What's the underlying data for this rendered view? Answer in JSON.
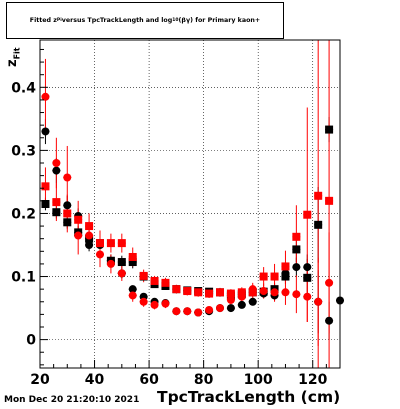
{
  "chart_data": {
    "type": "scatter",
    "title": {
      "pre": "Fitted  z",
      "sub1": "Pi",
      "mid": "  versus TpcTrackLength and log",
      "sub2": "10",
      "post": "(βγ) for Primary kaon+"
    },
    "xlabel": "TpcTrackLength (cm)",
    "ylabel": {
      "main": "z",
      "sub": "Fit"
    },
    "xlim": [
      20,
      130
    ],
    "ylim": [
      -0.045,
      0.475
    ],
    "x_ticks": [
      20,
      40,
      60,
      80,
      100,
      120
    ],
    "y_ticks": [
      0,
      0.1,
      0.2,
      0.3,
      0.4
    ],
    "y_tick_labels": [
      "0",
      "0.1",
      "0.2",
      "0.3",
      "0.4"
    ],
    "grid": true,
    "series": [
      {
        "name": "",
        "color": "#000000",
        "marker": "square",
        "points": [
          {
            "x": 22,
            "y": 0.215,
            "err": 0.01
          },
          {
            "x": 26,
            "y": 0.202,
            "err": 0.01
          },
          {
            "x": 30,
            "y": 0.186,
            "err": 0.01
          },
          {
            "x": 34,
            "y": 0.17,
            "err": 0.01
          },
          {
            "x": 38,
            "y": 0.16,
            "err": 0.01
          },
          {
            "x": 42,
            "y": 0.153,
            "err": 0.01
          },
          {
            "x": 46,
            "y": 0.125,
            "err": 0.01
          },
          {
            "x": 50,
            "y": 0.123,
            "err": 0.01
          },
          {
            "x": 54,
            "y": 0.123,
            "err": 0.01
          },
          {
            "x": 58,
            "y": 0.1,
            "err": 0.006
          },
          {
            "x": 62,
            "y": 0.088,
            "err": 0.006
          },
          {
            "x": 66,
            "y": 0.085,
            "err": 0.006
          },
          {
            "x": 70,
            "y": 0.08,
            "err": 0.005
          },
          {
            "x": 74,
            "y": 0.078,
            "err": 0.005
          },
          {
            "x": 78,
            "y": 0.077,
            "err": 0.005
          },
          {
            "x": 82,
            "y": 0.076,
            "err": 0.005
          },
          {
            "x": 86,
            "y": 0.075,
            "err": 0.005
          },
          {
            "x": 90,
            "y": 0.07,
            "err": 0.005
          },
          {
            "x": 94,
            "y": 0.072,
            "err": 0.005
          },
          {
            "x": 98,
            "y": 0.075,
            "err": 0.006
          },
          {
            "x": 102,
            "y": 0.076,
            "err": 0.008
          },
          {
            "x": 106,
            "y": 0.08,
            "err": 0.01
          },
          {
            "x": 110,
            "y": 0.1,
            "err": 0.012
          },
          {
            "x": 114,
            "y": 0.143,
            "err": 0.02
          },
          {
            "x": 118,
            "y": 0.098,
            "err": 0.03
          },
          {
            "x": 122,
            "y": 0.182,
            "err": 0.06
          },
          {
            "x": 126,
            "y": 0.333,
            "err": 0.02
          }
        ]
      },
      {
        "name": "",
        "color": "#000000",
        "marker": "circle",
        "points": [
          {
            "x": 22,
            "y": 0.33,
            "err": 0.02
          },
          {
            "x": 26,
            "y": 0.268,
            "err": 0.02
          },
          {
            "x": 30,
            "y": 0.213,
            "err": 0.015
          },
          {
            "x": 34,
            "y": 0.196,
            "err": 0.012
          },
          {
            "x": 38,
            "y": 0.15,
            "err": 0.01
          },
          {
            "x": 42,
            "y": 0.15,
            "err": 0.01
          },
          {
            "x": 46,
            "y": 0.125,
            "err": 0.01
          },
          {
            "x": 50,
            "y": 0.105,
            "err": 0.008
          },
          {
            "x": 54,
            "y": 0.08,
            "err": 0.006
          },
          {
            "x": 58,
            "y": 0.068,
            "err": 0.005
          },
          {
            "x": 62,
            "y": 0.06,
            "err": 0.004
          },
          {
            "x": 66,
            "y": 0.058,
            "err": 0.004
          },
          {
            "x": 70,
            "y": 0.045,
            "err": 0.004
          },
          {
            "x": 74,
            "y": 0.045,
            "err": 0.004
          },
          {
            "x": 78,
            "y": 0.043,
            "err": 0.004
          },
          {
            "x": 82,
            "y": 0.045,
            "err": 0.004
          },
          {
            "x": 86,
            "y": 0.05,
            "err": 0.004
          },
          {
            "x": 90,
            "y": 0.05,
            "err": 0.004
          },
          {
            "x": 94,
            "y": 0.055,
            "err": 0.005
          },
          {
            "x": 98,
            "y": 0.06,
            "err": 0.006
          },
          {
            "x": 102,
            "y": 0.073,
            "err": 0.006
          },
          {
            "x": 106,
            "y": 0.07,
            "err": 0.008
          },
          {
            "x": 110,
            "y": 0.105,
            "err": 0.01
          },
          {
            "x": 114,
            "y": 0.115,
            "err": 0.015
          },
          {
            "x": 118,
            "y": 0.115,
            "err": 0.02
          },
          {
            "x": 122,
            "y": 0.06,
            "err": 0.05
          },
          {
            "x": 126,
            "y": 0.03,
            "err": 0.03
          },
          {
            "x": 130,
            "y": 0.062,
            "err": 0.01
          }
        ]
      },
      {
        "name": "",
        "color": "#ff0000",
        "marker": "square",
        "points": [
          {
            "x": 22,
            "y": 0.243,
            "err": 0.03
          },
          {
            "x": 26,
            "y": 0.218,
            "err": 0.03
          },
          {
            "x": 30,
            "y": 0.2,
            "err": 0.03
          },
          {
            "x": 34,
            "y": 0.19,
            "err": 0.03
          },
          {
            "x": 38,
            "y": 0.18,
            "err": 0.02
          },
          {
            "x": 42,
            "y": 0.153,
            "err": 0.02
          },
          {
            "x": 46,
            "y": 0.153,
            "err": 0.015
          },
          {
            "x": 50,
            "y": 0.153,
            "err": 0.015
          },
          {
            "x": 54,
            "y": 0.131,
            "err": 0.015
          },
          {
            "x": 58,
            "y": 0.101,
            "err": 0.01
          },
          {
            "x": 62,
            "y": 0.093,
            "err": 0.008
          },
          {
            "x": 66,
            "y": 0.09,
            "err": 0.008
          },
          {
            "x": 70,
            "y": 0.08,
            "err": 0.007
          },
          {
            "x": 74,
            "y": 0.077,
            "err": 0.007
          },
          {
            "x": 78,
            "y": 0.075,
            "err": 0.007
          },
          {
            "x": 82,
            "y": 0.073,
            "err": 0.007
          },
          {
            "x": 86,
            "y": 0.075,
            "err": 0.007
          },
          {
            "x": 90,
            "y": 0.073,
            "err": 0.007
          },
          {
            "x": 94,
            "y": 0.075,
            "err": 0.008
          },
          {
            "x": 98,
            "y": 0.075,
            "err": 0.01
          },
          {
            "x": 102,
            "y": 0.1,
            "err": 0.015
          },
          {
            "x": 106,
            "y": 0.1,
            "err": 0.02
          },
          {
            "x": 110,
            "y": 0.116,
            "err": 0.025
          },
          {
            "x": 114,
            "y": 0.163,
            "err": 0.05
          },
          {
            "x": 118,
            "y": 0.198,
            "err": 0.17
          },
          {
            "x": 122,
            "y": 0.228,
            "err": 0.3
          },
          {
            "x": 126,
            "y": 0.22,
            "err": 0.3
          }
        ]
      },
      {
        "name": "",
        "color": "#ff0000",
        "marker": "circle",
        "points": [
          {
            "x": 22,
            "y": 0.385,
            "err": 0.06
          },
          {
            "x": 26,
            "y": 0.28,
            "err": 0.04
          },
          {
            "x": 30,
            "y": 0.257,
            "err": 0.05
          },
          {
            "x": 34,
            "y": 0.165,
            "err": 0.03
          },
          {
            "x": 38,
            "y": 0.165,
            "err": 0.02
          },
          {
            "x": 42,
            "y": 0.135,
            "err": 0.02
          },
          {
            "x": 46,
            "y": 0.12,
            "err": 0.015
          },
          {
            "x": 50,
            "y": 0.105,
            "err": 0.012
          },
          {
            "x": 54,
            "y": 0.07,
            "err": 0.01
          },
          {
            "x": 58,
            "y": 0.06,
            "err": 0.008
          },
          {
            "x": 62,
            "y": 0.055,
            "err": 0.007
          },
          {
            "x": 66,
            "y": 0.057,
            "err": 0.007
          },
          {
            "x": 70,
            "y": 0.045,
            "err": 0.006
          },
          {
            "x": 74,
            "y": 0.045,
            "err": 0.006
          },
          {
            "x": 78,
            "y": 0.043,
            "err": 0.006
          },
          {
            "x": 82,
            "y": 0.047,
            "err": 0.006
          },
          {
            "x": 86,
            "y": 0.05,
            "err": 0.006
          },
          {
            "x": 90,
            "y": 0.063,
            "err": 0.008
          },
          {
            "x": 94,
            "y": 0.068,
            "err": 0.008
          },
          {
            "x": 98,
            "y": 0.08,
            "err": 0.01
          },
          {
            "x": 102,
            "y": 0.077,
            "err": 0.012
          },
          {
            "x": 106,
            "y": 0.075,
            "err": 0.015
          },
          {
            "x": 110,
            "y": 0.075,
            "err": 0.02
          },
          {
            "x": 114,
            "y": 0.072,
            "err": 0.03
          },
          {
            "x": 118,
            "y": 0.068,
            "err": 0.04
          },
          {
            "x": 122,
            "y": 0.06,
            "err": 0.07
          },
          {
            "x": 126,
            "y": 0.09,
            "err": 0.08
          }
        ]
      }
    ]
  },
  "footer": {
    "timestamp": "Mon Dec 20 21:20:10 2021"
  }
}
